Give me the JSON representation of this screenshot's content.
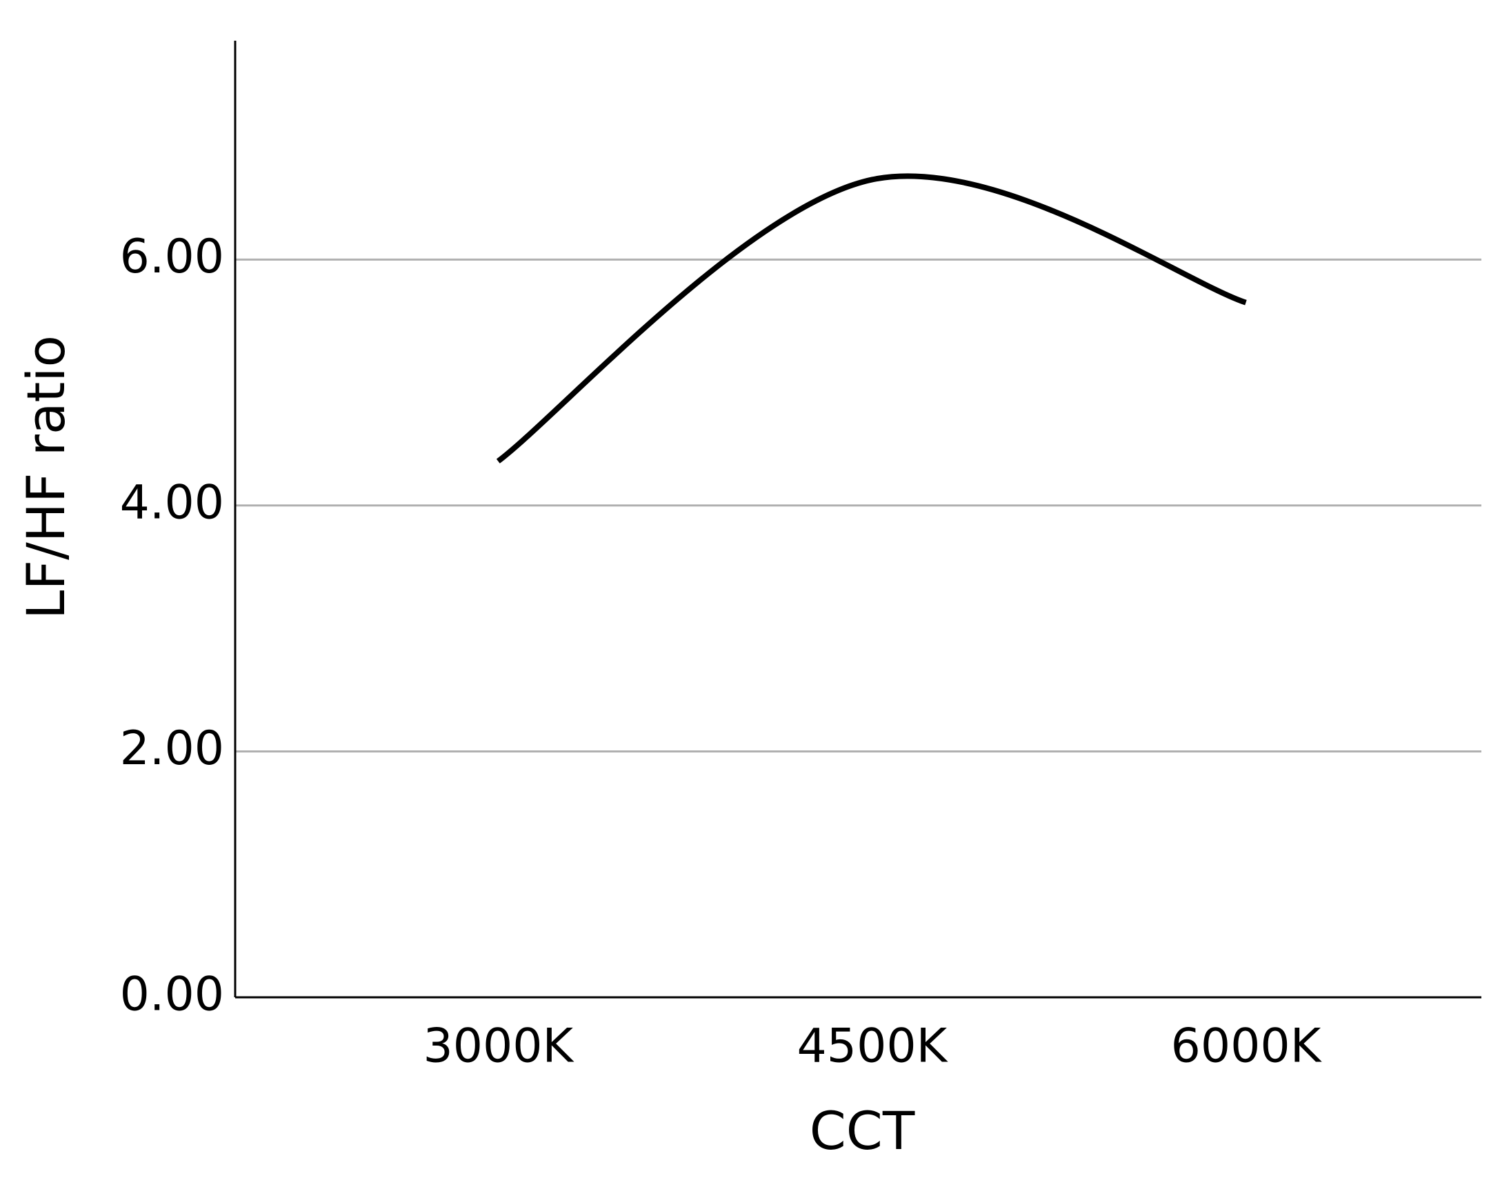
{
  "chart_data": {
    "type": "line",
    "x_label": "CCT",
    "y_label": "LF/HF ratio",
    "categories": [
      "3000K",
      "4500K",
      "6000K"
    ],
    "series": [
      {
        "color": "#000000",
        "values": [
          4.36,
          6.65,
          5.65
        ]
      }
    ],
    "ylim": [
      0,
      7.78
    ],
    "yticks": [
      {
        "value": 0,
        "label": "0.00"
      },
      {
        "value": 2,
        "label": "2.00"
      },
      {
        "value": 4,
        "label": "4.00"
      },
      {
        "value": 6,
        "label": "6.00"
      }
    ],
    "grid": true
  }
}
